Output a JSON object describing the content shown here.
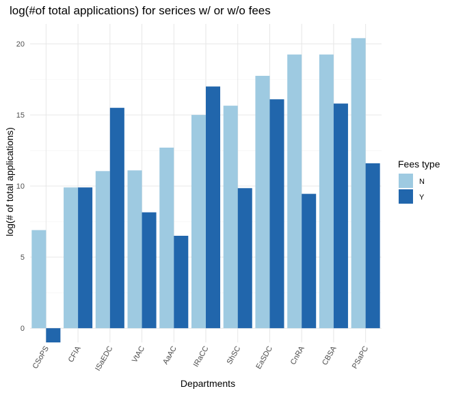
{
  "chart_data": {
    "type": "bar",
    "title": "log(#of total applications) for serices w/ or w/o fees",
    "xlabel": "Departments",
    "ylabel": "log(# of total applications)",
    "categories": [
      "CSoPS",
      "CFIA",
      "ISaEDC",
      "VtAC",
      "AaAC",
      "IRaCC",
      "ShSC",
      "EaSDC",
      "CnRA",
      "CBSA",
      "PSaPC"
    ],
    "series": [
      {
        "name": "N",
        "color": "#9ecae1",
        "values": [
          6.9,
          9.9,
          11.05,
          11.1,
          12.7,
          15.0,
          15.65,
          17.75,
          19.25,
          19.25,
          20.4
        ]
      },
      {
        "name": "Y",
        "color": "#2166ac",
        "values": [
          -1.0,
          9.9,
          15.5,
          8.15,
          6.5,
          17.0,
          9.85,
          16.1,
          9.45,
          15.8,
          11.6
        ]
      }
    ],
    "ylim": [
      -1.0,
      21.4
    ],
    "yticks": [
      0,
      5,
      10,
      15,
      20
    ],
    "grid": true,
    "legend": {
      "title": "Fees type",
      "position": "right",
      "items": [
        "N",
        "Y"
      ]
    }
  }
}
